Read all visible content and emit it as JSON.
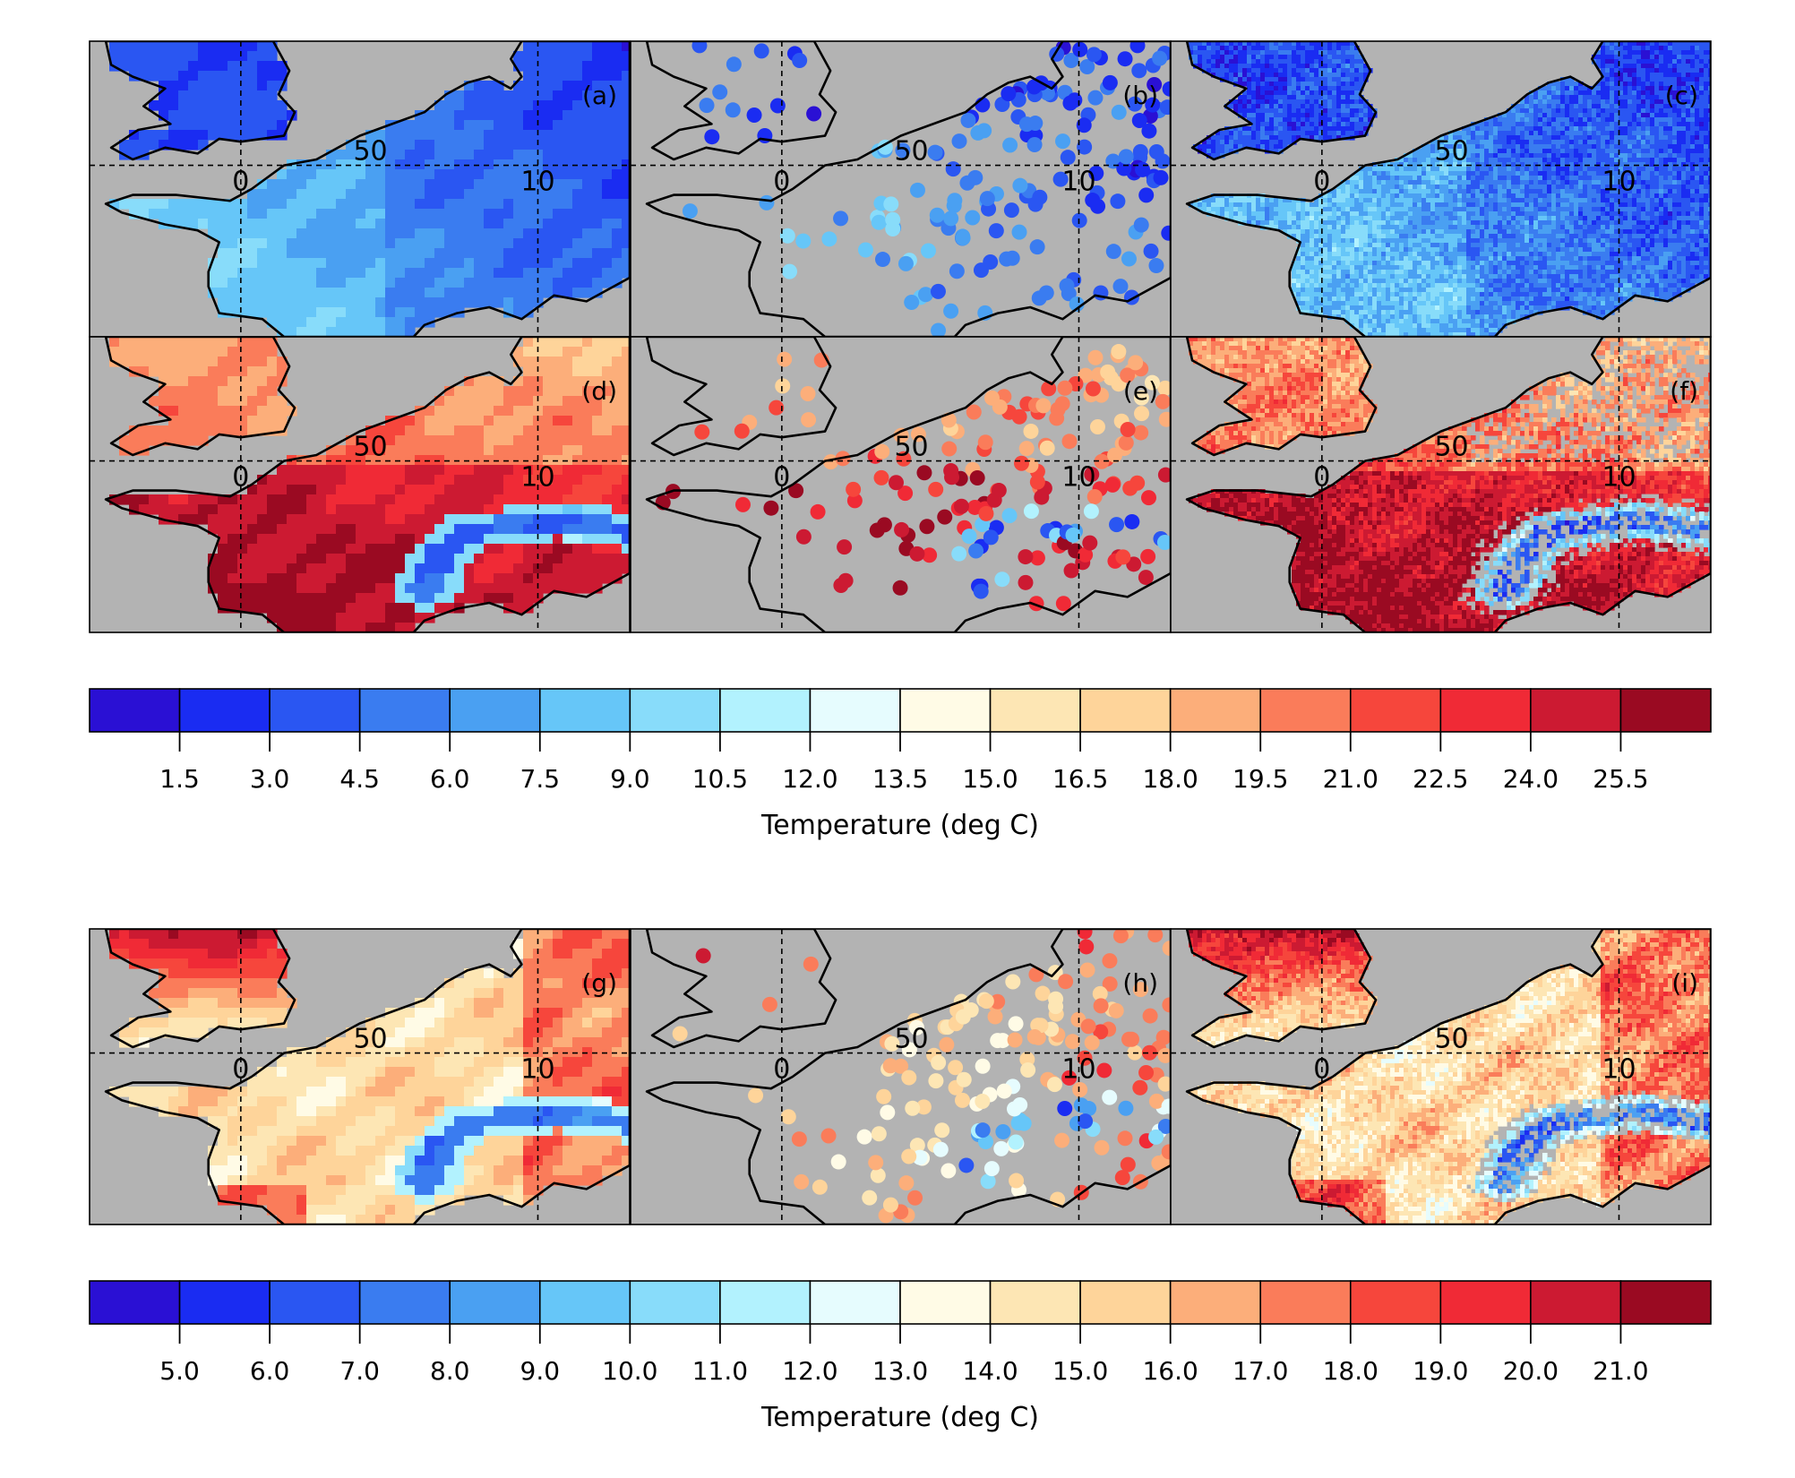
{
  "panels": [
    {
      "id": "a",
      "label": "(a)",
      "kind": "grid",
      "scale": 1,
      "row": 0,
      "col": 0
    },
    {
      "id": "b",
      "label": "(b)",
      "kind": "stations",
      "scale": 1,
      "row": 0,
      "col": 1
    },
    {
      "id": "c",
      "label": "(c)",
      "kind": "fine",
      "scale": 1,
      "row": 0,
      "col": 2
    },
    {
      "id": "d",
      "label": "(d)",
      "kind": "grid",
      "scale": 1,
      "row": 1,
      "col": 0
    },
    {
      "id": "e",
      "label": "(e)",
      "kind": "stations",
      "scale": 1,
      "row": 1,
      "col": 1
    },
    {
      "id": "f",
      "label": "(f)",
      "kind": "fine",
      "scale": 1,
      "row": 1,
      "col": 2
    },
    {
      "id": "g",
      "label": "(g)",
      "kind": "grid",
      "scale": 2,
      "row": 2,
      "col": 0
    },
    {
      "id": "h",
      "label": "(h)",
      "kind": "stations",
      "scale": 2,
      "row": 2,
      "col": 1
    },
    {
      "id": "i",
      "label": "(i)",
      "kind": "fine",
      "scale": 2,
      "row": 2,
      "col": 2
    }
  ],
  "grid_labels": {
    "latitude": "50",
    "longitude_0": "0",
    "longitude_10": "10"
  },
  "colorbars": [
    {
      "name": "colorbar-1",
      "ticks": [
        "1.5",
        "3.0",
        "4.5",
        "6.0",
        "7.5",
        "9.0",
        "10.5",
        "12.0",
        "13.5",
        "15.0",
        "16.5",
        "18.0",
        "19.5",
        "21.0",
        "22.5",
        "24.0",
        "25.5"
      ],
      "title": "Temperature (deg C)"
    },
    {
      "name": "colorbar-2",
      "ticks": [
        "5.0",
        "6.0",
        "7.0",
        "8.0",
        "9.0",
        "10.0",
        "11.0",
        "12.0",
        "13.0",
        "14.0",
        "15.0",
        "16.0",
        "17.0",
        "18.0",
        "19.0",
        "20.0",
        "21.0"
      ],
      "title": "Temperature (deg C)"
    }
  ],
  "colors": {
    "palette": [
      "#2a10d4",
      "#1a2cf2",
      "#2a56f2",
      "#3a7cf0",
      "#4aa0f2",
      "#66c6f8",
      "#88dcfa",
      "#b2f2fe",
      "#e6fcfe",
      "#fffbe6",
      "#fde6b4",
      "#fed49a",
      "#fcae7a",
      "#fa7c5a",
      "#f6463c",
      "#f02a36",
      "#cc1a32",
      "#9a0a22"
    ],
    "land_mask": "#b3b3b3"
  }
}
